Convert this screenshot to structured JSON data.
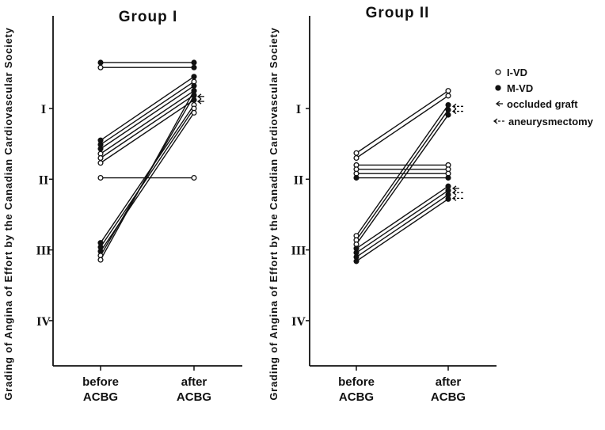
{
  "chart_data": [
    {
      "type": "line",
      "title": "Group I",
      "ylabel": "Grading of Angina of Effort by the Canadian Cardiovascular Society",
      "categories": [
        "before\nACBG",
        "after\nACBG"
      ],
      "y_ticks": [
        {
          "value": 1,
          "label": "I"
        },
        {
          "value": 2,
          "label": "II"
        },
        {
          "value": 3,
          "label": "III"
        },
        {
          "value": 4,
          "label": "IV"
        }
      ],
      "y_range": [
        0.4,
        4.6
      ],
      "y_inverted": true,
      "series": [
        {
          "values": [
            0.35,
            0.35
          ],
          "marker": [
            "filled",
            "filled"
          ]
        },
        {
          "values": [
            0.42,
            0.42
          ],
          "marker": [
            "open",
            "filled"
          ]
        },
        {
          "values": [
            1.98,
            1.98
          ],
          "marker": [
            "open",
            "open"
          ]
        },
        {
          "values": [
            1.45,
            0.55
          ],
          "marker": [
            "filled",
            "filled"
          ]
        },
        {
          "values": [
            1.51,
            0.62
          ],
          "marker": [
            "filled",
            "open"
          ]
        },
        {
          "values": [
            1.57,
            0.68
          ],
          "marker": [
            "filled",
            "filled"
          ]
        },
        {
          "values": [
            1.64,
            0.75
          ],
          "marker": [
            "open",
            "open"
          ]
        },
        {
          "values": [
            1.7,
            0.81
          ],
          "marker": [
            "open",
            "filled"
          ]
        },
        {
          "values": [
            1.77,
            0.88
          ],
          "marker": [
            "open",
            "filled"
          ]
        },
        {
          "values": [
            2.9,
            0.95
          ],
          "marker": [
            "filled",
            "open"
          ]
        },
        {
          "values": [
            2.96,
            1.0
          ],
          "marker": [
            "filled",
            "open"
          ]
        },
        {
          "values": [
            3.02,
            1.06
          ],
          "marker": [
            "filled",
            "open"
          ]
        },
        {
          "values": [
            3.08,
            0.82
          ],
          "marker": [
            "open",
            "filled"
          ]
        },
        {
          "values": [
            3.14,
            0.75
          ],
          "marker": [
            "open",
            "filled"
          ]
        }
      ],
      "annotations": [
        {
          "arrow": "solid",
          "y": 0.83
        },
        {
          "arrow": "solid",
          "y": 0.9
        }
      ]
    },
    {
      "type": "line",
      "title": "Group II",
      "ylabel": "Grading of Angina of Effort by the Canadian Cardiovascular Society",
      "categories": [
        "before\nACBG",
        "after\nACBG"
      ],
      "y_ticks": [
        {
          "value": 1,
          "label": "I"
        },
        {
          "value": 2,
          "label": "II"
        },
        {
          "value": 3,
          "label": "III"
        },
        {
          "value": 4,
          "label": "IV"
        }
      ],
      "y_range": [
        0.4,
        4.6
      ],
      "y_inverted": true,
      "series": [
        {
          "values": [
            1.63,
            0.75
          ],
          "marker": [
            "open",
            "open"
          ]
        },
        {
          "values": [
            1.7,
            0.82
          ],
          "marker": [
            "open",
            "open"
          ]
        },
        {
          "values": [
            1.8,
            1.8
          ],
          "marker": [
            "open",
            "open"
          ]
        },
        {
          "values": [
            1.86,
            1.86
          ],
          "marker": [
            "open",
            "open"
          ]
        },
        {
          "values": [
            1.92,
            1.92
          ],
          "marker": [
            "open",
            "open"
          ]
        },
        {
          "values": [
            1.98,
            1.98
          ],
          "marker": [
            "filled",
            "filled"
          ]
        },
        {
          "values": [
            2.8,
            0.95
          ],
          "marker": [
            "open",
            "filled"
          ]
        },
        {
          "values": [
            2.86,
            1.02
          ],
          "marker": [
            "open",
            "filled"
          ]
        },
        {
          "values": [
            2.92,
            1.09
          ],
          "marker": [
            "open",
            "filled"
          ]
        },
        {
          "values": [
            2.98,
            2.1
          ],
          "marker": [
            "filled",
            "filled"
          ]
        },
        {
          "values": [
            3.04,
            2.16
          ],
          "marker": [
            "filled",
            "filled"
          ]
        },
        {
          "values": [
            3.1,
            2.22
          ],
          "marker": [
            "filled",
            "filled"
          ]
        },
        {
          "values": [
            3.16,
            2.28
          ],
          "marker": [
            "filled",
            "filled"
          ]
        }
      ],
      "annotations": [
        {
          "arrow": "dashed",
          "y": 0.97
        },
        {
          "arrow": "dashed",
          "y": 1.04
        },
        {
          "arrow": "solid",
          "y": 2.13
        },
        {
          "arrow": "dashed",
          "y": 2.19
        },
        {
          "arrow": "dashed",
          "y": 2.27
        }
      ]
    }
  ],
  "legend": {
    "items": [
      {
        "marker": "open",
        "label": "I-VD"
      },
      {
        "marker": "filled",
        "label": "M-VD"
      },
      {
        "marker": "arrow-solid",
        "label": "occluded graft"
      },
      {
        "marker": "arrow-dashed",
        "label": "aneurysmectomy"
      }
    ]
  }
}
